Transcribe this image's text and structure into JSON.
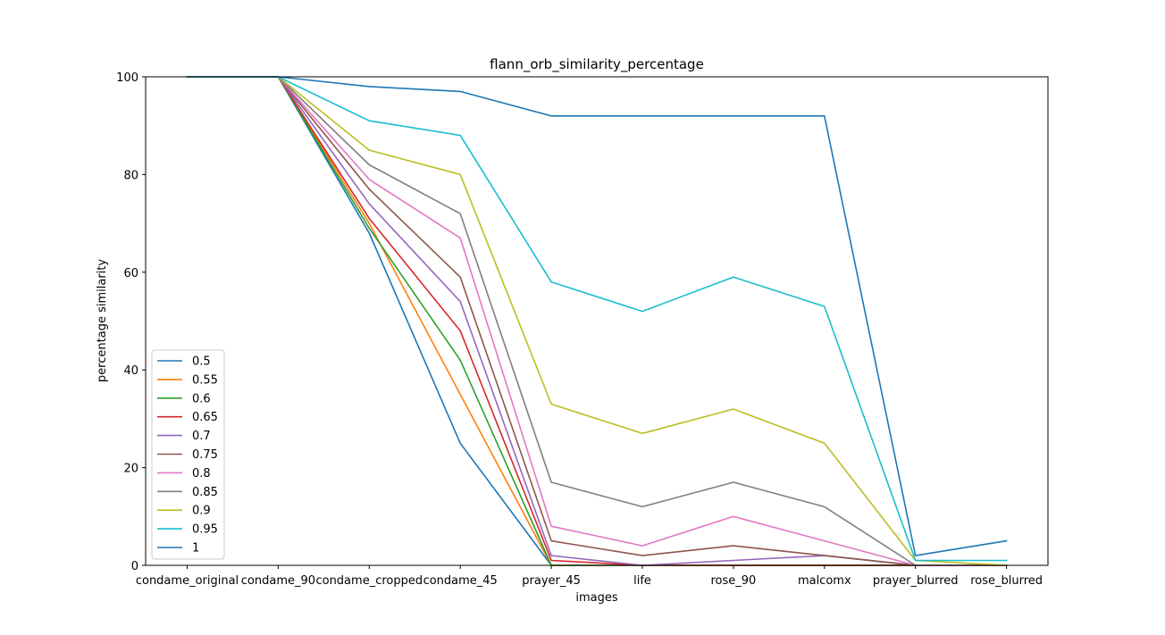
{
  "chart_data": {
    "type": "line",
    "title": "flann_orb_similarity_percentage",
    "xlabel": "images",
    "ylabel": "percentage similarity",
    "ylim": [
      0,
      100
    ],
    "yticks": [
      0,
      20,
      40,
      60,
      80,
      100
    ],
    "grid": false,
    "legend_position": "lower-left",
    "categories": [
      "condame_original",
      "condame_90",
      "condame_cropped",
      "condame_45",
      "prayer_45",
      "life",
      "rose_90",
      "malcomx",
      "prayer_blurred",
      "rose_blurred"
    ],
    "series": [
      {
        "name": "0.5",
        "color": "#1f77b4",
        "values": [
          100,
          100,
          68,
          25,
          0,
          0,
          0,
          0,
          0,
          0
        ]
      },
      {
        "name": "0.55",
        "color": "#ff7f0e",
        "values": [
          100,
          100,
          70,
          35,
          0,
          0,
          0,
          0,
          0,
          0
        ]
      },
      {
        "name": "0.6",
        "color": "#2ca02c",
        "values": [
          100,
          100,
          69,
          42,
          0,
          0,
          0,
          0,
          0,
          0
        ]
      },
      {
        "name": "0.65",
        "color": "#d62728",
        "values": [
          100,
          100,
          71,
          48,
          1,
          0,
          0,
          0,
          0,
          0
        ]
      },
      {
        "name": "0.7",
        "color": "#9467bd",
        "values": [
          100,
          100,
          74,
          54,
          2,
          0,
          1,
          2,
          0,
          0
        ]
      },
      {
        "name": "0.75",
        "color": "#8c564b",
        "values": [
          100,
          100,
          77,
          59,
          5,
          2,
          4,
          2,
          0,
          0
        ]
      },
      {
        "name": "0.8",
        "color": "#e377c2",
        "values": [
          100,
          100,
          79,
          67,
          8,
          4,
          10,
          5,
          0,
          0
        ]
      },
      {
        "name": "0.85",
        "color": "#7f7f7f",
        "values": [
          100,
          100,
          82,
          72,
          17,
          12,
          17,
          12,
          0,
          0
        ]
      },
      {
        "name": "0.9",
        "color": "#bcbd22",
        "values": [
          100,
          100,
          85,
          80,
          33,
          27,
          32,
          25,
          1,
          0
        ]
      },
      {
        "name": "0.95",
        "color": "#17becf",
        "values": [
          100,
          100,
          91,
          88,
          58,
          52,
          59,
          53,
          1,
          1
        ]
      },
      {
        "name": "1",
        "color": "#1f77b4",
        "values": [
          100,
          100,
          98,
          97,
          92,
          92,
          92,
          92,
          2,
          5
        ]
      }
    ]
  }
}
